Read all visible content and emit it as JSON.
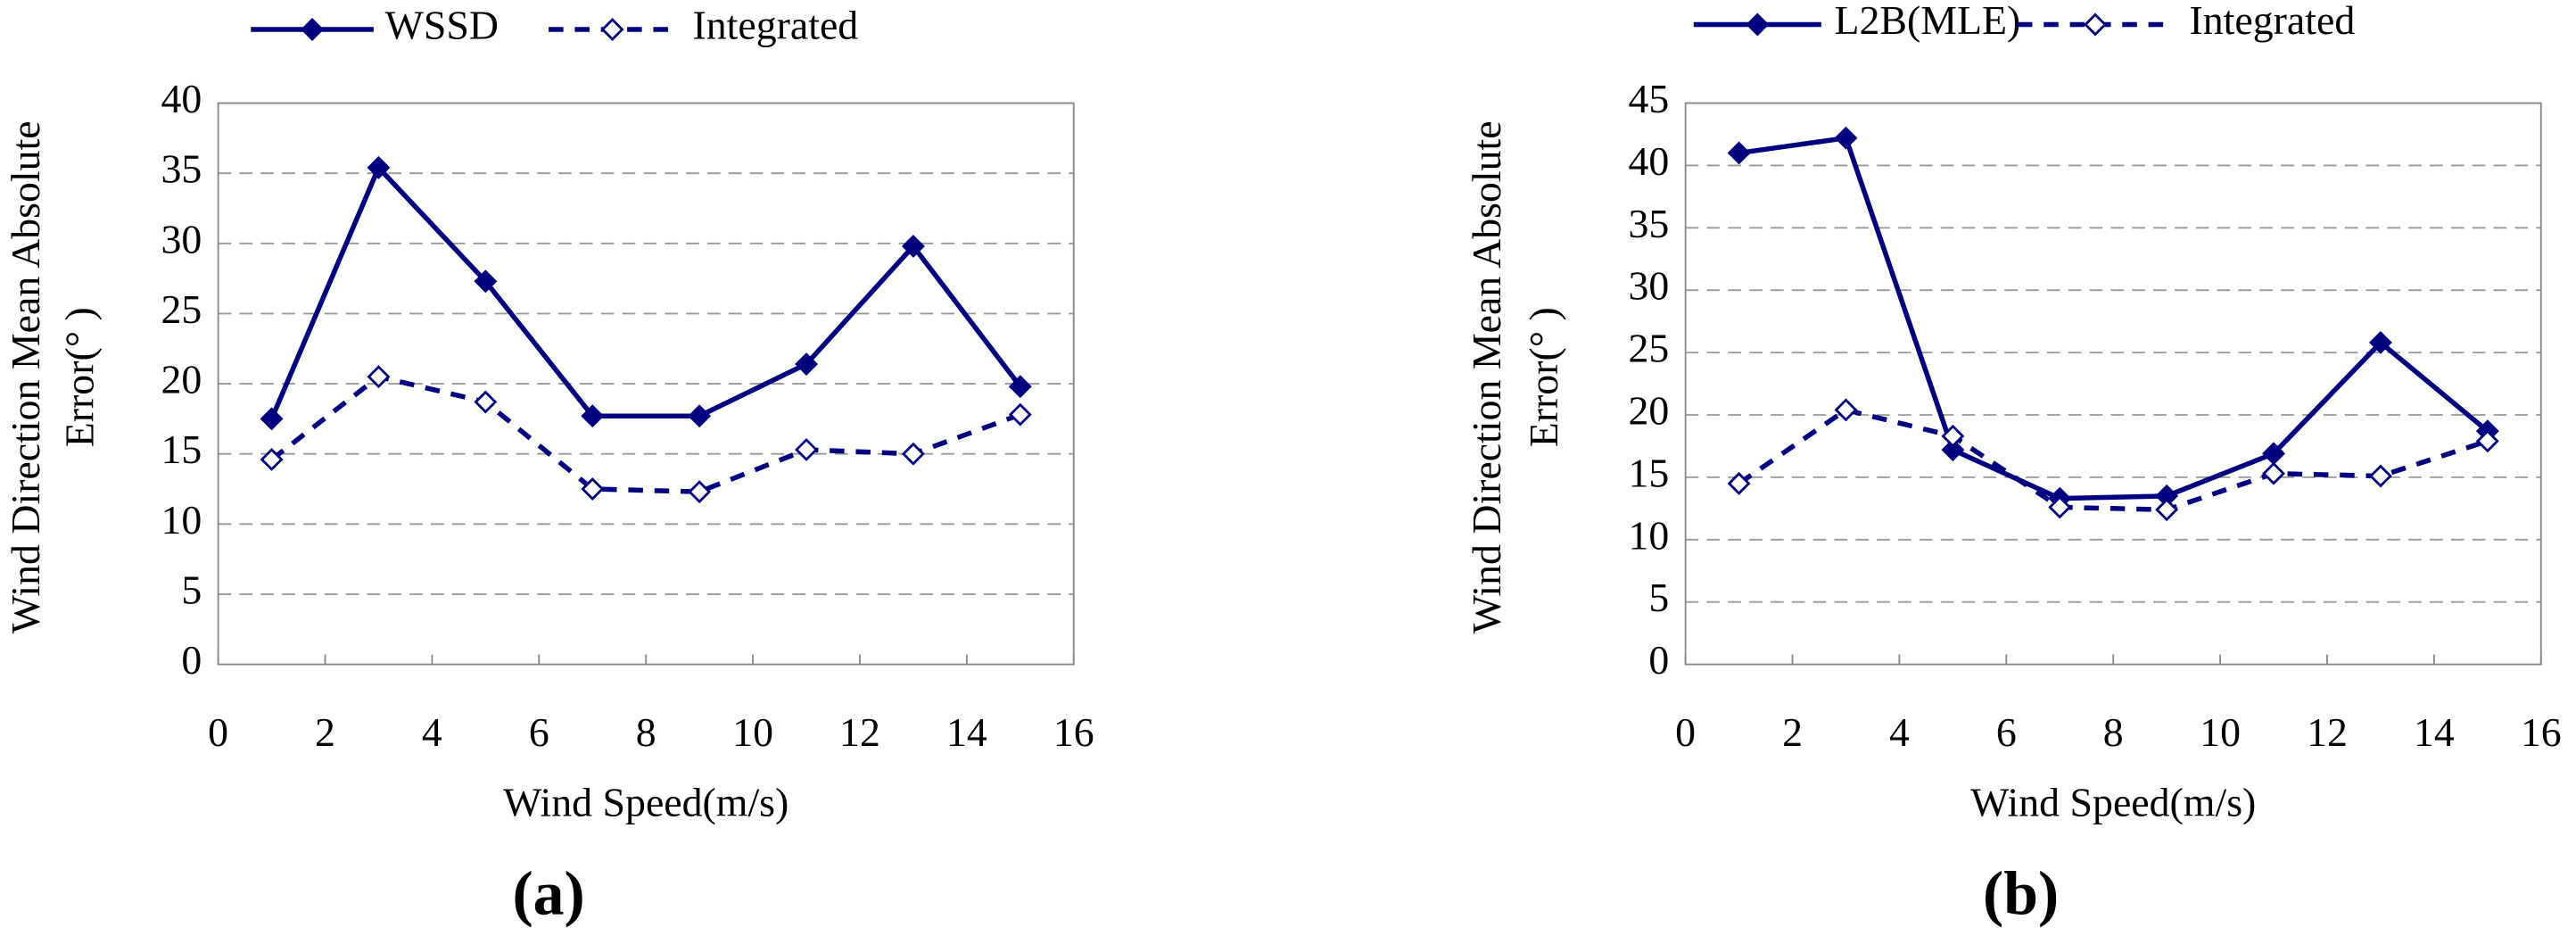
{
  "chart_data": [
    {
      "type": "line",
      "panel_label": "(a)",
      "xlabel": "Wind Speed(m/s)",
      "ylabel": [
        "Wind Direction Mean Absolute",
        "Error(° )"
      ],
      "x": [
        1,
        3,
        5,
        7,
        9,
        11,
        13,
        15
      ],
      "series": [
        {
          "name": "WSSD",
          "color": "#000080",
          "style": "solid",
          "marker": "filled-diamond",
          "values": [
            17.5,
            35.4,
            27.3,
            17.7,
            17.7,
            21.4,
            29.8,
            19.8
          ]
        },
        {
          "name": "Integrated",
          "color": "#000080",
          "style": "dashed",
          "marker": "open-diamond",
          "values": [
            14.6,
            20.5,
            18.7,
            12.5,
            12.3,
            15.3,
            15.0,
            17.8
          ]
        }
      ],
      "xlim": [
        0,
        16
      ],
      "xticks": [
        0,
        2,
        4,
        6,
        8,
        10,
        12,
        14,
        16
      ],
      "ylim": [
        0,
        40
      ],
      "yticks": [
        0,
        5,
        10,
        15,
        20,
        25,
        30,
        35,
        40
      ],
      "grid": true,
      "legend": "top"
    },
    {
      "type": "line",
      "panel_label": "(b)",
      "xlabel": "Wind Speed(m/s)",
      "ylabel": [
        "Wind Direction Mean Absolute",
        "Error(° )"
      ],
      "x": [
        1,
        3,
        5,
        7,
        9,
        11,
        13,
        15
      ],
      "series": [
        {
          "name": "L2B(MLE)",
          "color": "#000080",
          "style": "solid",
          "marker": "filled-diamond",
          "values": [
            41.0,
            42.2,
            17.2,
            13.3,
            13.5,
            16.9,
            25.8,
            18.7
          ]
        },
        {
          "name": "Integrated",
          "color": "#000080",
          "style": "dashed",
          "marker": "open-diamond",
          "values": [
            14.5,
            20.4,
            18.3,
            12.6,
            12.4,
            15.3,
            15.1,
            17.9
          ]
        }
      ],
      "xlim": [
        0,
        16
      ],
      "xticks": [
        0,
        2,
        4,
        6,
        8,
        10,
        12,
        14,
        16
      ],
      "ylim": [
        0,
        45
      ],
      "yticks": [
        0,
        5,
        10,
        15,
        20,
        25,
        30,
        35,
        40,
        45
      ],
      "grid": true,
      "legend": "top"
    }
  ]
}
